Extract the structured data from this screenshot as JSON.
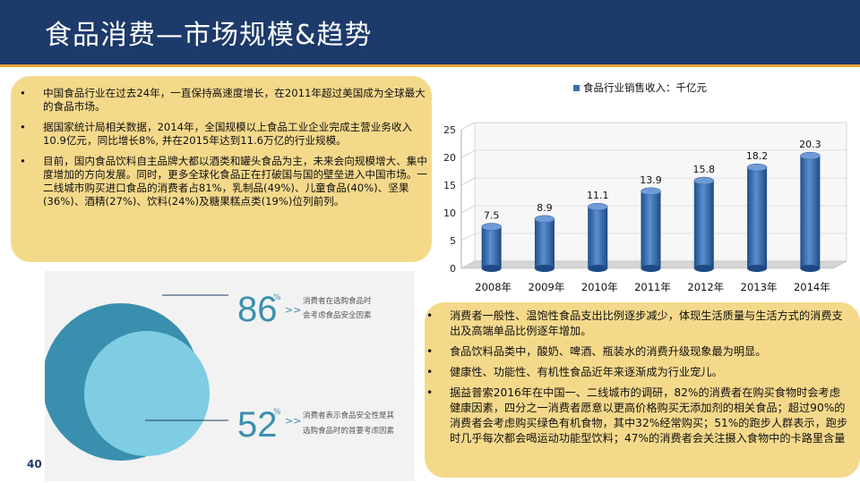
{
  "header": {
    "title": "食品消费—市场规模&趋势"
  },
  "page_number": "40",
  "box1": {
    "items": [
      "中国食品行业在过去24年，一直保持高速度增长，在2011年超过美国成为全球最大的食品市场。",
      "据国家统计局相关数据，2014年，全国规模以上食品工业企业完成主营业务收入10.9亿元，同比增长8%, 并在2015年达到11.6万亿的行业规模。",
      "目前，国内食品饮料自主品牌大都以酒类和罐头食品为主，未来会向规模增大、集中度增加的方向发展。同时，更多全球化食品正在打破国与国的壁垒进入中国市场。一二线城市购买进口食品的消费者占81%，乳制品(49%)、儿童食品(40%)、坚果(36%)、酒精(27%)、饮料(24%)及糖果糕点类(19%)位列前列。"
    ]
  },
  "box2": {
    "items": [
      "消费者一般性、温饱性食品支出比例逐步减少，体现生活质量与生活方式的消费支出及高端单品比例逐年增加。",
      "食品饮料品类中，酸奶、啤酒、瓶装水的消费升级现象最为明显。",
      "健康性、功能性、有机性食品近年来逐渐成为行业宠儿。",
      "据益普索2016年在中国一、二线城市的调研，82%的消费者在购买食物时会考虑健康因素，四分之一消费者愿意以更高价格购买无添加剂的相关食品；超过90%的消费者会考虑购买绿色有机食物，其中32%经常购买；51%的跑步人群表示，跑步时几乎每次都会喝运动功能型饮料；47%的消费者会关注摄入食物中的卡路里含量"
    ]
  },
  "pie": {
    "stat1": {
      "value": "86",
      "unit": "%",
      "arrow": ">>",
      "line1": "消费者在选购食品时",
      "line2": "会考虑食品安全因素",
      "fraction": 0.86
    },
    "stat2": {
      "value": "52",
      "unit": "%",
      "arrow": ">>",
      "line1": "消费者表示食品安全性是其",
      "line2": "选购食品时的首要考虑因素",
      "fraction": 0.52
    }
  },
  "colors": {
    "header": "#1c3a6a",
    "accent": "#e7a23a",
    "box": "#f5d98b",
    "bar": "#3d6fb0",
    "pie_outer": "#3a8fae",
    "pie_inner": "#7fcde3"
  },
  "chart_data": {
    "type": "bar",
    "title": "",
    "legend": "食品行业销售收入：千亿元",
    "legend_position": "top",
    "categories": [
      "2008年",
      "2009年",
      "2010年",
      "2011年",
      "2012年",
      "2013年",
      "2014年"
    ],
    "values": [
      7.5,
      8.9,
      11.1,
      13.9,
      15.8,
      18.2,
      20.3
    ],
    "value_labels": [
      "7.5",
      "8.9",
      "11.1",
      "13.9",
      "15.8",
      "18.2",
      "20.3"
    ],
    "yticks": [
      "0",
      "5",
      "10",
      "15",
      "20",
      "25"
    ],
    "ylim": [
      0,
      25
    ],
    "style": "3d-cylinder",
    "grid": true
  }
}
